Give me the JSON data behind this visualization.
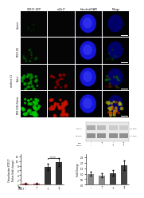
{
  "figure_bg": "#ffffff",
  "grid_rows": 4,
  "grid_cols": 4,
  "col_labels": [
    "STX17-GFP",
    "mCh-P",
    "Hoechst/DAPI",
    "Merge"
  ],
  "row_labels": [
    "Control",
    "STX17-KD",
    "Parkin",
    "STX17-KD+Parkin"
  ],
  "wb_band_colors_top": [
    "#aaaaaa",
    "#bbbbbb",
    "#cccccc",
    "#cccccc"
  ],
  "wb_band_colors_bot": [
    "#999999",
    "#999999",
    "#999999",
    "#999999"
  ],
  "wb_label_top": "STX17",
  "wb_label_bot": "GAPDH",
  "wb_kda_top": "33 kDa",
  "wb_kda_bot": "37 kDa",
  "chart1_values": [
    0.4,
    0.6,
    7.5,
    9.5
  ],
  "chart1_errors": [
    0.25,
    0.35,
    1.2,
    1.8
  ],
  "chart1_colors": [
    "#cc2222",
    "#cc2222",
    "#333333",
    "#333333"
  ],
  "chart1_ylabel": "Colocalization STX17/\nParkin (fold change)",
  "chart1_ylim": [
    0,
    13
  ],
  "chart2_values": [
    1.0,
    0.85,
    1.05,
    1.75
  ],
  "chart2_errors": [
    0.15,
    0.2,
    0.25,
    0.45
  ],
  "chart2_colors": [
    "#888888",
    "#888888",
    "#444444",
    "#444444"
  ],
  "chart2_ylabel": "Fold Change",
  "chart2_ylim": [
    0,
    2.8
  ]
}
